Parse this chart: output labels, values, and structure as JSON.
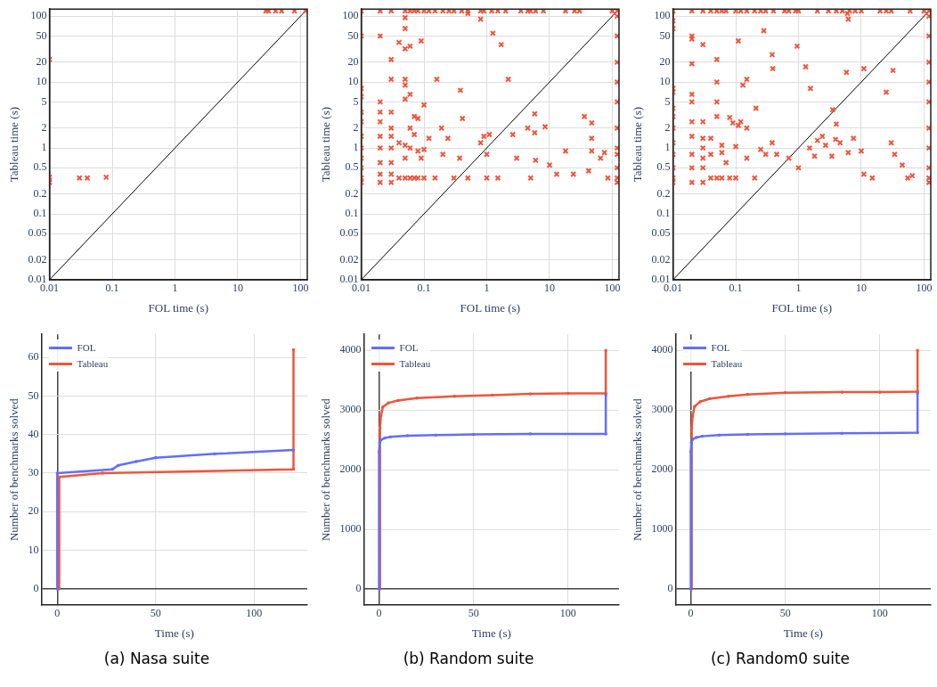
{
  "chart_data": [
    {
      "type": "scatter",
      "xlabel": "FOL time (s)",
      "ylabel": "Tableau time (s)",
      "log": "xy",
      "grid": true,
      "legend": false,
      "marker": "cross",
      "xlim": [
        0.01,
        128
      ],
      "ylim": [
        0.01,
        128
      ],
      "xticks": [
        0.01,
        0.1,
        1,
        10,
        100
      ],
      "yticks": [
        0.01,
        0.02,
        0.05,
        0.1,
        0.2,
        0.5,
        1,
        2,
        5,
        10,
        20,
        50,
        100
      ],
      "series": [
        {
          "type": "scatter",
          "color": "#ef553b",
          "x": [
            28,
            31,
            40,
            50,
            80,
            120,
            0.01,
            0.01,
            0.01,
            0.03,
            0.04,
            0.08
          ],
          "values": [
            120,
            120,
            120,
            120,
            120,
            120,
            22,
            0.3,
            0.36,
            0.35,
            0.35,
            0.36
          ]
        },
        {
          "type": "line",
          "marker": "none",
          "color": "#000000",
          "x": [
            0.01,
            128
          ],
          "values": [
            0.01,
            128
          ]
        }
      ]
    },
    {
      "type": "scatter",
      "xlabel": "FOL time (s)",
      "ylabel": "Tableau time (s)",
      "log": "xy",
      "grid": true,
      "legend": false,
      "marker": "cross",
      "xlim": [
        0.01,
        128
      ],
      "ylim": [
        0.01,
        128
      ],
      "xticks": [
        0.01,
        0.1,
        1,
        10,
        100
      ],
      "yticks": [
        0.01,
        0.02,
        0.05,
        0.1,
        0.2,
        0.5,
        1,
        2,
        5,
        10,
        20,
        50,
        100
      ],
      "series": [
        {
          "type": "scatter",
          "color": "#ef553b",
          "x": [
            0.01,
            0.02,
            0.03,
            0.05,
            0.06,
            0.07,
            0.08,
            0.1,
            0.12,
            0.15,
            0.2,
            0.25,
            0.3,
            0.4,
            0.5,
            0.8,
            0.9,
            1.2,
            1.5,
            2,
            3.5,
            4.5,
            5,
            6,
            8,
            18,
            25,
            30,
            100,
            120,
            120,
            120,
            120,
            120,
            120,
            120,
            120,
            120,
            120,
            120,
            120,
            0.01,
            0.01,
            0.01,
            0.01,
            0.01,
            0.01,
            0.01,
            0.01,
            0.01,
            0.01,
            0.01,
            0.02,
            0.02,
            0.02,
            0.02,
            0.02,
            0.02,
            0.02,
            0.02,
            0.02,
            0.03,
            0.03,
            0.03,
            0.03,
            0.03,
            0.03,
            0.03,
            0.03,
            0.03,
            0.04,
            0.04,
            0.04,
            0.05,
            0.05,
            0.05,
            0.05,
            0.05,
            0.05,
            0.05,
            0.05,
            0.05,
            0.06,
            0.06,
            0.06,
            0.06,
            0.06,
            0.07,
            0.07,
            0.07,
            0.08,
            0.08,
            0.08,
            0.09,
            0.09,
            0.1,
            0.1,
            0.1,
            0.12,
            0.15,
            0.16,
            0.19,
            0.2,
            0.24,
            0.3,
            0.37,
            0.38,
            0.41,
            0.5,
            0.5,
            0.8,
            0.8,
            0.9,
            1,
            1,
            1.1,
            1.25,
            1.5,
            1.7,
            2.2,
            2.6,
            3,
            4.5,
            5,
            5.8,
            5.8,
            6,
            8.5,
            10,
            13,
            18,
            24,
            36,
            42,
            47,
            47,
            47,
            65,
            75,
            85
          ],
          "values": [
            120,
            120,
            120,
            120,
            120,
            120,
            120,
            120,
            120,
            120,
            120,
            120,
            120,
            120,
            120,
            120,
            120,
            120,
            120,
            120,
            120,
            120,
            120,
            120,
            120,
            120,
            120,
            120,
            120,
            120,
            0.3,
            0.35,
            0.5,
            0.8,
            1,
            2,
            5,
            10,
            20,
            50,
            100,
            0.3,
            0.35,
            0.5,
            0.7,
            1,
            1.5,
            2.5,
            3.5,
            6,
            8,
            50,
            0.3,
            0.4,
            0.6,
            1,
            1.5,
            2.5,
            3.5,
            5,
            50,
            0.3,
            0.4,
            0.6,
            1,
            1.5,
            2,
            3.5,
            11,
            22,
            0.35,
            1.2,
            40,
            0.35,
            0.7,
            1.1,
            5.5,
            9,
            11,
            32,
            65,
            95,
            0.35,
            1,
            2,
            6.5,
            35,
            0.35,
            1.6,
            3,
            0.35,
            0.9,
            2.8,
            0.7,
            42,
            0.35,
            0.95,
            4.5,
            1.4,
            0.35,
            11,
            2,
            0.8,
            1.4,
            0.35,
            0.7,
            7.5,
            2.8,
            0.35,
            110,
            1.2,
            90,
            1.5,
            0.8,
            0.35,
            1.6,
            55,
            0.35,
            37,
            11,
            1.6,
            0.7,
            2,
            0.35,
            3.3,
            1.7,
            0.65,
            2.1,
            0.55,
            0.4,
            0.9,
            0.4,
            3,
            0.45,
            1.4,
            0.9,
            2.4,
            0.7,
            0.85,
            0.35
          ]
        },
        {
          "type": "line",
          "marker": "none",
          "color": "#000000",
          "x": [
            0.01,
            128
          ],
          "values": [
            0.01,
            128
          ]
        }
      ]
    },
    {
      "type": "scatter",
      "xlabel": "FOL time (s)",
      "ylabel": "Tableau time (s)",
      "log": "xy",
      "grid": true,
      "legend": false,
      "marker": "cross",
      "xlim": [
        0.01,
        128
      ],
      "ylim": [
        0.01,
        128
      ],
      "xticks": [
        0.01,
        0.1,
        1,
        10,
        100
      ],
      "yticks": [
        0.01,
        0.02,
        0.05,
        0.1,
        0.2,
        0.5,
        1,
        2,
        5,
        10,
        20,
        50,
        100
      ],
      "series": [
        {
          "type": "scatter",
          "color": "#ef553b",
          "x": [
            0.01,
            0.02,
            0.03,
            0.04,
            0.05,
            0.06,
            0.07,
            0.1,
            0.12,
            0.15,
            0.2,
            0.25,
            0.3,
            0.4,
            0.6,
            0.7,
            0.9,
            1,
            2,
            3,
            4,
            5,
            6.5,
            8,
            10,
            20,
            25,
            30,
            60,
            100,
            120,
            120,
            120,
            120,
            120,
            120,
            120,
            120,
            120,
            120,
            120,
            0.01,
            0.01,
            0.01,
            0.01,
            0.01,
            0.01,
            0.01,
            0.01,
            0.01,
            0.01,
            0.01,
            0.01,
            0.02,
            0.02,
            0.02,
            0.02,
            0.02,
            0.02,
            0.02,
            0.02,
            0.02,
            0.02,
            0.03,
            0.03,
            0.03,
            0.03,
            0.03,
            0.03,
            0.03,
            0.04,
            0.04,
            0.04,
            0.05,
            0.05,
            0.05,
            0.05,
            0.05,
            0.06,
            0.06,
            0.06,
            0.07,
            0.08,
            0.08,
            0.09,
            0.1,
            0.1,
            0.11,
            0.11,
            0.12,
            0.13,
            0.15,
            0.15,
            0.15,
            0.2,
            0.21,
            0.25,
            0.28,
            0.3,
            0.38,
            0.39,
            0.38,
            0.45,
            0.7,
            0.95,
            1,
            1.3,
            1.5,
            1.55,
            1.8,
            2,
            2.4,
            2.7,
            3.4,
            3.5,
            3.9,
            4,
            4.6,
            5.8,
            6,
            6.2,
            6.2,
            7.5,
            10,
            11,
            11,
            15,
            25,
            30,
            32,
            34,
            45,
            55,
            65
          ],
          "values": [
            120,
            120,
            120,
            120,
            120,
            120,
            120,
            120,
            120,
            120,
            120,
            120,
            120,
            120,
            120,
            120,
            120,
            120,
            120,
            120,
            120,
            120,
            120,
            120,
            120,
            120,
            120,
            120,
            120,
            120,
            120,
            0.3,
            0.35,
            0.5,
            1,
            2,
            5,
            10,
            20,
            50,
            100,
            0.3,
            0.35,
            0.5,
            0.8,
            1.2,
            2,
            3,
            4,
            7,
            8,
            65,
            85,
            0.3,
            0.5,
            0.8,
            1.5,
            2.5,
            5,
            6.5,
            19,
            45,
            50,
            0.3,
            0.5,
            0.7,
            1,
            1.4,
            2.5,
            37,
            0.35,
            0.8,
            1.4,
            0.35,
            3,
            5,
            10,
            22,
            0.35,
            0.85,
            1.1,
            0.6,
            0.35,
            2.9,
            2.4,
            1.05,
            0.35,
            2.2,
            42,
            2.5,
            9,
            11,
            2,
            0.7,
            0.35,
            4,
            0.95,
            60,
            0.8,
            26,
            16,
            1.2,
            0.8,
            0.7,
            35,
            0.5,
            17,
            1,
            8,
            0.75,
            1.3,
            1.5,
            1.1,
            0.75,
            3.8,
            1.35,
            2.3,
            1.2,
            14,
            110,
            0.85,
            90,
            1.4,
            0.9,
            16,
            0.4,
            0.35,
            7,
            1.2,
            15,
            0.8,
            0.55,
            0.35,
            0.38
          ]
        },
        {
          "type": "line",
          "marker": "none",
          "color": "#000000",
          "x": [
            0.01,
            128
          ],
          "values": [
            0.01,
            128
          ]
        }
      ]
    },
    {
      "type": "line",
      "xlabel": "Time (s)",
      "ylabel": "Number of benchmarks solved",
      "grid": true,
      "legend": "top left",
      "marker": "square",
      "xlim": [
        -8,
        127
      ],
      "ylim": [
        -4.2,
        66
      ],
      "xticks": [
        0,
        50,
        100
      ],
      "yticks": [
        0,
        10,
        20,
        30,
        40,
        50,
        60
      ],
      "annotations": [
        "(a) Nasa suite"
      ],
      "series": [
        {
          "name": "FOL",
          "color": "#636efa",
          "x": [
            0,
            0,
            28,
            31,
            40,
            50,
            80,
            120
          ],
          "values": [
            0,
            30,
            31,
            32,
            33,
            34,
            35,
            36
          ]
        },
        {
          "name": "Tableau",
          "color": "#ef553b",
          "x": [
            1,
            1,
            23,
            120,
            120
          ],
          "values": [
            0,
            29,
            30,
            31,
            62
          ]
        }
      ]
    },
    {
      "type": "line",
      "xlabel": "Time (s)",
      "ylabel": "Number of benchmarks solved",
      "grid": true,
      "legend": "top left",
      "marker": "square",
      "xlim": [
        -8,
        127
      ],
      "ylim": [
        -270,
        4270
      ],
      "xticks": [
        0,
        50,
        100
      ],
      "yticks": [
        0,
        1000,
        2000,
        3000,
        4000
      ],
      "annotations": [
        "(b) Random suite"
      ],
      "series": [
        {
          "name": "FOL",
          "color": "#636efa",
          "x": [
            0,
            0,
            0.3,
            1,
            3,
            6,
            15,
            30,
            50,
            80,
            120,
            120
          ],
          "values": [
            0,
            2300,
            2450,
            2500,
            2530,
            2550,
            2570,
            2580,
            2590,
            2600,
            2600,
            3250
          ]
        },
        {
          "name": "Tableau",
          "color": "#ef553b",
          "x": [
            0.5,
            0.5,
            1,
            2,
            5,
            10,
            20,
            40,
            60,
            80,
            100,
            120,
            120
          ],
          "values": [
            0,
            2700,
            2900,
            3050,
            3120,
            3160,
            3200,
            3230,
            3250,
            3270,
            3280,
            3280,
            4000
          ]
        }
      ]
    },
    {
      "type": "line",
      "xlabel": "Time (s)",
      "ylabel": "Number of benchmarks solved",
      "grid": true,
      "legend": "top left",
      "marker": "square",
      "xlim": [
        -8,
        127
      ],
      "ylim": [
        -270,
        4270
      ],
      "xticks": [
        0,
        50,
        100
      ],
      "yticks": [
        0,
        1000,
        2000,
        3000,
        4000
      ],
      "annotations": [
        "(c) Random0 suite"
      ],
      "series": [
        {
          "name": "FOL",
          "color": "#636efa",
          "x": [
            0,
            0,
            0.3,
            1,
            3,
            6,
            15,
            30,
            50,
            80,
            120,
            120
          ],
          "values": [
            0,
            2300,
            2450,
            2510,
            2540,
            2560,
            2580,
            2590,
            2600,
            2610,
            2620,
            3280
          ]
        },
        {
          "name": "Tableau",
          "color": "#ef553b",
          "x": [
            0.5,
            0.5,
            1,
            2,
            5,
            10,
            20,
            30,
            50,
            80,
            100,
            120,
            120
          ],
          "values": [
            0,
            2700,
            2900,
            3060,
            3140,
            3190,
            3230,
            3260,
            3290,
            3300,
            3300,
            3310,
            4000
          ]
        }
      ]
    }
  ]
}
